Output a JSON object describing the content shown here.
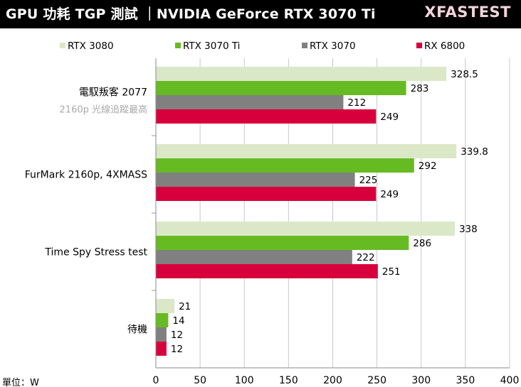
{
  "header": {
    "title": "GPU 功耗 TGP 測試 ｜NVIDIA GeForce RTX 3070 Ti",
    "brand": "XFASTEST"
  },
  "chart_data": {
    "type": "bar",
    "orientation": "horizontal",
    "title": "GPU 功耗 TGP 測試 ｜NVIDIA GeForce RTX 3070 Ti",
    "unit_label": "單位：W",
    "categories": [
      {
        "name": "電馭叛客 2077",
        "sub": "2160p 光線追蹤最高"
      },
      {
        "name": "FurMark 2160p, 4XMASS",
        "sub": ""
      },
      {
        "name": "Time Spy Stress test",
        "sub": ""
      },
      {
        "name": "待機",
        "sub": ""
      }
    ],
    "series": [
      {
        "name": "RTX 3080",
        "color": "#dbe8c8",
        "values": [
          328.5,
          339.8,
          338,
          21
        ],
        "labels": [
          "328.5",
          "339.8",
          "338",
          "21"
        ]
      },
      {
        "name": "RTX 3070 Ti",
        "color": "#66bb22",
        "values": [
          283,
          292,
          286,
          14
        ],
        "labels": [
          "283",
          "292",
          "286",
          "14"
        ]
      },
      {
        "name": "RTX 3070",
        "color": "#808080",
        "values": [
          212,
          225,
          222,
          12
        ],
        "labels": [
          "212",
          "225",
          "222",
          "12"
        ]
      },
      {
        "name": "RX 6800",
        "color": "#d8003c",
        "values": [
          249,
          249,
          251,
          12
        ],
        "labels": [
          "249",
          "249",
          "251",
          "12"
        ]
      }
    ],
    "xlim": [
      0,
      400
    ],
    "xticks": [
      0,
      50,
      100,
      150,
      200,
      250,
      300,
      350,
      400
    ],
    "grid": true,
    "legend": "top"
  }
}
